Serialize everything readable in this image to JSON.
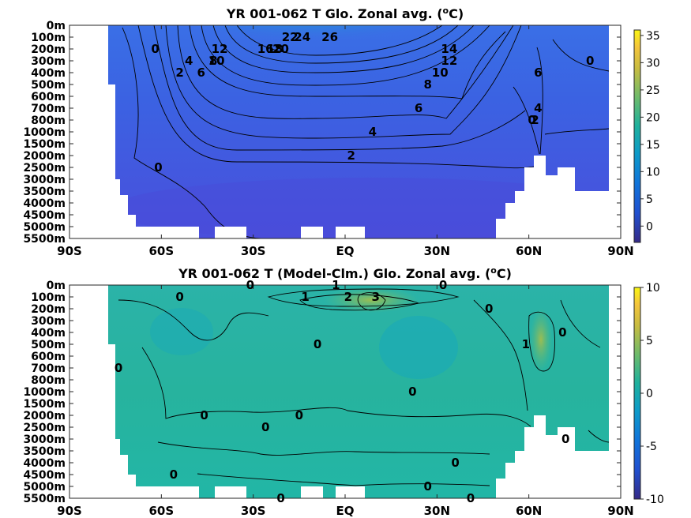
{
  "chart_data": [
    {
      "type": "heatmap",
      "title_main": "YR 001-062 T Glo. Zonal avg. (",
      "title_sup": "o",
      "title_end": "C)",
      "xlabel": "",
      "ylabel": "",
      "x_ticks": [
        "90S",
        "60S",
        "30S",
        "EQ",
        "30N",
        "60N",
        "90N"
      ],
      "x_tick_values": [
        -90,
        -60,
        -30,
        0,
        30,
        60,
        90
      ],
      "y_ticks": [
        "0m",
        "100m",
        "200m",
        "300m",
        "400m",
        "500m",
        "600m",
        "700m",
        "800m",
        "1000m",
        "1500m",
        "2000m",
        "2500m",
        "3000m",
        "3500m",
        "4000m",
        "4500m",
        "5000m",
        "5500m"
      ],
      "xlim": [
        -90,
        90
      ],
      "colorbar_range": [
        -3,
        36
      ],
      "colorbar_ticks": [
        "35",
        "30",
        "25",
        "20",
        "15",
        "10",
        "5",
        "0"
      ],
      "colorbar_tick_values": [
        35,
        30,
        25,
        20,
        15,
        10,
        5,
        0
      ],
      "colormap": "parula",
      "contour_labels": [
        {
          "text": "26",
          "lat": -5,
          "level": "100m"
        },
        {
          "text": "24",
          "lat": -14,
          "level": "100m"
        },
        {
          "text": "22",
          "lat": -18,
          "level": "100m"
        },
        {
          "text": "20",
          "lat": -21,
          "level": "200m"
        },
        {
          "text": "18",
          "lat": -23,
          "level": "200m"
        },
        {
          "text": "16",
          "lat": -26,
          "level": "200m"
        },
        {
          "text": "14",
          "lat": 34,
          "level": "200m"
        },
        {
          "text": "12",
          "lat": -41,
          "level": "200m"
        },
        {
          "text": "12",
          "lat": 34,
          "level": "300m"
        },
        {
          "text": "10",
          "lat": -42,
          "level": "300m"
        },
        {
          "text": "10",
          "lat": 31,
          "level": "400m"
        },
        {
          "text": "8",
          "lat": -43,
          "level": "300m"
        },
        {
          "text": "8",
          "lat": 27,
          "level": "500m"
        },
        {
          "text": "6",
          "lat": -47,
          "level": "400m"
        },
        {
          "text": "6",
          "lat": 24,
          "level": "700m"
        },
        {
          "text": "6",
          "lat": 63,
          "level": "400m"
        },
        {
          "text": "4",
          "lat": -51,
          "level": "300m"
        },
        {
          "text": "4",
          "lat": 9,
          "level": "1000m"
        },
        {
          "text": "4",
          "lat": 63,
          "level": "700m"
        },
        {
          "text": "2",
          "lat": -54,
          "level": "400m"
        },
        {
          "text": "2",
          "lat": 2,
          "level": "2000m"
        },
        {
          "text": "2",
          "lat": 62,
          "level": "800m"
        },
        {
          "text": "0",
          "lat": -62,
          "level": "200m"
        },
        {
          "text": "0",
          "lat": -61,
          "level": "2500m"
        },
        {
          "text": "0",
          "lat": 80,
          "level": "300m"
        },
        {
          "text": "0",
          "lat": 61,
          "level": "800m"
        }
      ]
    },
    {
      "type": "heatmap",
      "title_main": "YR 001-062 T (Model-Clm.) Glo. Zonal avg. (",
      "title_sup": "o",
      "title_end": "C)",
      "xlabel": "",
      "ylabel": "",
      "x_ticks": [
        "90S",
        "60S",
        "30S",
        "EQ",
        "30N",
        "60N",
        "90N"
      ],
      "x_tick_values": [
        -90,
        -60,
        -30,
        0,
        30,
        60,
        90
      ],
      "y_ticks": [
        "0m",
        "100m",
        "200m",
        "300m",
        "400m",
        "500m",
        "600m",
        "700m",
        "800m",
        "1000m",
        "1500m",
        "2000m",
        "2500m",
        "3000m",
        "3500m",
        "4000m",
        "4500m",
        "5000m",
        "5500m"
      ],
      "xlim": [
        -90,
        90
      ],
      "colorbar_range": [
        -10,
        10
      ],
      "colorbar_ticks": [
        "10",
        "5",
        "0",
        "-5",
        "-10"
      ],
      "colorbar_tick_values": [
        10,
        5,
        0,
        -5,
        -10
      ],
      "colormap": "parula",
      "contour_labels": [
        {
          "text": "0",
          "lat": -31,
          "level": "0m"
        },
        {
          "text": "0",
          "lat": 32,
          "level": "0m"
        },
        {
          "text": "1",
          "lat": -3,
          "level": "0m"
        },
        {
          "text": "2",
          "lat": 1,
          "level": "100m"
        },
        {
          "text": "3",
          "lat": 10,
          "level": "100m"
        },
        {
          "text": "1",
          "lat": -13,
          "level": "100m"
        },
        {
          "text": "0",
          "lat": -54,
          "level": "100m"
        },
        {
          "text": "0",
          "lat": 47,
          "level": "200m"
        },
        {
          "text": "0",
          "lat": -9,
          "level": "500m"
        },
        {
          "text": "1",
          "lat": 59,
          "level": "500m"
        },
        {
          "text": "0",
          "lat": 71,
          "level": "400m"
        },
        {
          "text": "0",
          "lat": -74,
          "level": "700m"
        },
        {
          "text": "0",
          "lat": 22,
          "level": "1000m"
        },
        {
          "text": "0",
          "lat": -46,
          "level": "2000m"
        },
        {
          "text": "0",
          "lat": -15,
          "level": "2000m"
        },
        {
          "text": "0",
          "lat": -26,
          "level": "2500m"
        },
        {
          "text": "0",
          "lat": 72,
          "level": "3000m"
        },
        {
          "text": "0",
          "lat": 36,
          "level": "4000m"
        },
        {
          "text": "0",
          "lat": -56,
          "level": "4500m"
        },
        {
          "text": "0",
          "lat": 27,
          "level": "5000m"
        },
        {
          "text": "0",
          "lat": -21,
          "level": "5500m"
        },
        {
          "text": "0",
          "lat": 41,
          "level": "5500m"
        }
      ]
    }
  ]
}
